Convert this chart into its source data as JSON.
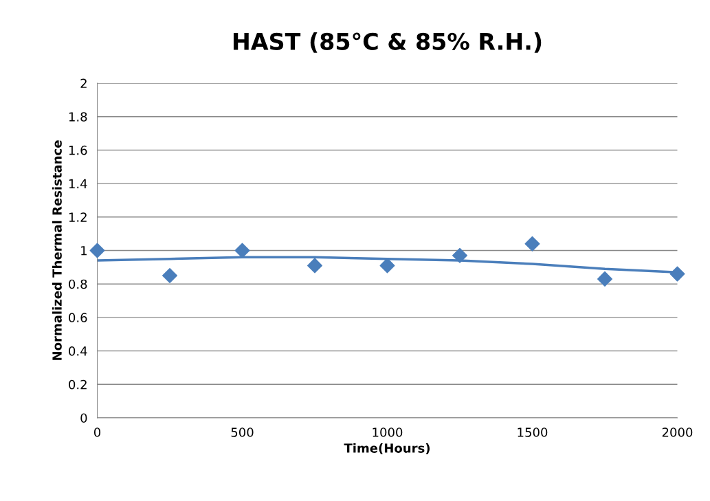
{
  "chart_data": {
    "type": "scatter",
    "title": "HAST (85°C & 85% R.H.)",
    "xlabel": "Time(Hours)",
    "ylabel": "Normalized Thermal Resistance",
    "series": [
      {
        "color": "#4a7ebb",
        "marker": "diamond",
        "x": [
          0,
          250,
          500,
          750,
          1000,
          1250,
          1500,
          1750,
          2000
        ],
        "values": [
          1.0,
          0.85,
          1.0,
          0.91,
          0.91,
          0.97,
          1.04,
          0.83,
          0.86
        ]
      },
      {
        "type": "line",
        "color": "#4a7ebb",
        "marker": "none",
        "line_style": "solid",
        "x": [
          0,
          250,
          500,
          750,
          1000,
          1250,
          1500,
          1750,
          2000
        ],
        "values": [
          0.94,
          0.95,
          0.96,
          0.96,
          0.95,
          0.94,
          0.92,
          0.89,
          0.87
        ]
      }
    ],
    "xlim": [
      0,
      2000
    ],
    "xticks": [
      0,
      500,
      1000,
      1500,
      2000
    ],
    "ylim": [
      0,
      2
    ],
    "yticks": [
      0,
      0.2,
      0.4,
      0.6,
      0.8,
      1,
      1.2,
      1.4,
      1.6,
      1.8,
      2
    ],
    "grid": "y",
    "legend": false
  }
}
